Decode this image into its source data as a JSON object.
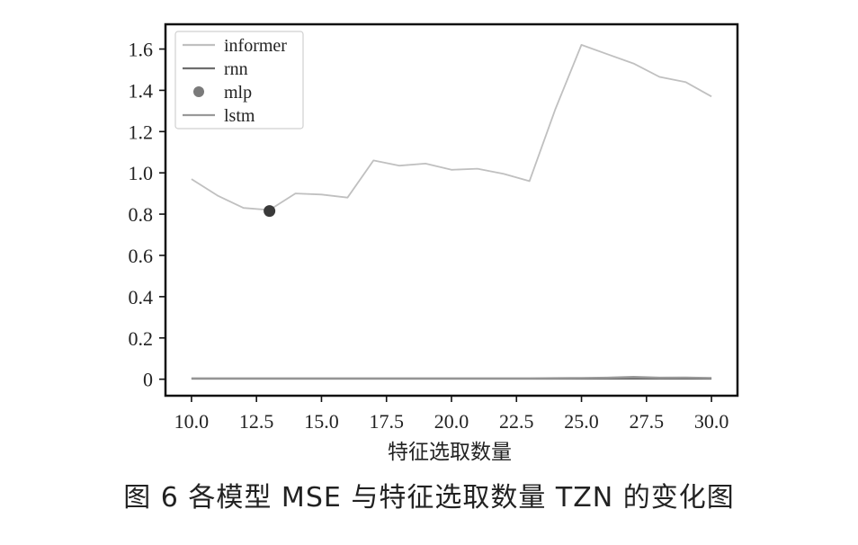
{
  "caption": "图 6  各模型 MSE 与特征选取数量 TZN 的变化图",
  "chart_data": {
    "type": "line",
    "xlabel": "特征选取数量",
    "ylabel": "",
    "xlim": [
      9.0,
      31.0
    ],
    "ylim": [
      -0.08,
      1.72
    ],
    "x_ticks": [
      10.0,
      12.5,
      15.0,
      17.5,
      20.0,
      22.5,
      25.0,
      27.5,
      30.0
    ],
    "x_tick_labels": [
      "10.0",
      "12.5",
      "15.0",
      "17.5",
      "20.0",
      "22.5",
      "25.0",
      "27.5",
      "30.0"
    ],
    "y_ticks": [
      0,
      0.2,
      0.4,
      0.6,
      0.8,
      1.0,
      1.2,
      1.4,
      1.6
    ],
    "y_tick_labels": [
      "0",
      "0.2",
      "0.4",
      "0.6",
      "0.8",
      "1.0",
      "1.2",
      "1.4",
      "1.6"
    ],
    "legend_position": "top-left",
    "grid": false,
    "series": [
      {
        "name": "informer",
        "kind": "line",
        "color": "#c0c0c0",
        "x": [
          10,
          11,
          12,
          13,
          14,
          15,
          16,
          17,
          18,
          19,
          20,
          21,
          22,
          23,
          24,
          25,
          26,
          27,
          28,
          29,
          30
        ],
        "y": [
          0.97,
          0.89,
          0.83,
          0.82,
          0.9,
          0.895,
          0.88,
          1.06,
          1.035,
          1.045,
          1.015,
          1.02,
          0.995,
          0.96,
          1.31,
          1.62,
          1.575,
          1.53,
          1.465,
          1.44,
          1.37
        ]
      },
      {
        "name": "rnn",
        "kind": "line",
        "color": "#6e6e6e",
        "x": [
          10,
          11,
          12,
          13,
          14,
          15,
          16,
          17,
          18,
          19,
          20,
          21,
          22,
          23,
          24,
          25,
          26,
          27,
          28,
          29,
          30
        ],
        "y": [
          0.003,
          0.003,
          0.003,
          0.003,
          0.003,
          0.003,
          0.003,
          0.003,
          0.003,
          0.003,
          0.003,
          0.003,
          0.003,
          0.003,
          0.003,
          0.003,
          0.003,
          0.003,
          0.003,
          0.003,
          0.003
        ]
      },
      {
        "name": "mlp",
        "kind": "scatter",
        "color": "#3a3a3a",
        "x": [
          13
        ],
        "y": [
          0.815
        ]
      },
      {
        "name": "lstm",
        "kind": "line",
        "color": "#999999",
        "x": [
          10,
          11,
          12,
          13,
          14,
          15,
          16,
          17,
          18,
          19,
          20,
          21,
          22,
          23,
          24,
          25,
          26,
          27,
          28,
          29,
          30
        ],
        "y": [
          0.004,
          0.004,
          0.004,
          0.004,
          0.004,
          0.004,
          0.004,
          0.004,
          0.004,
          0.004,
          0.004,
          0.004,
          0.004,
          0.004,
          0.005,
          0.006,
          0.007,
          0.011,
          0.007,
          0.008,
          0.006
        ]
      }
    ],
    "legend_marker_colors": {
      "informer": "#c0c0c0",
      "rnn": "#6e6e6e",
      "mlp": "#7a7a7a",
      "lstm": "#999999"
    }
  }
}
